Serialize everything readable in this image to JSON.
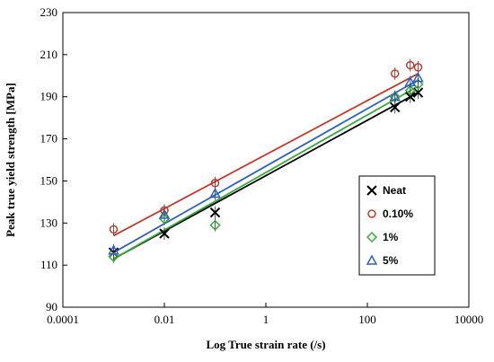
{
  "chart_data": {
    "type": "scatter",
    "xlabel": "Log True strain rate (/s)",
    "ylabel": "Peak true yield strength [MPa]",
    "x_scale": "log",
    "xlim": [
      0.0001,
      10000
    ],
    "ylim": [
      90,
      230
    ],
    "x_ticks": [
      "0.0001",
      "0.01",
      "1",
      "100",
      "10000"
    ],
    "y_ticks": [
      90,
      110,
      130,
      150,
      170,
      190,
      210,
      230
    ],
    "grid": false,
    "legend_position": "bottom-right",
    "series": [
      {
        "name": "Neat",
        "marker": "x",
        "color": "#000000",
        "x": [
          0.001,
          0.01,
          0.1,
          350,
          700,
          1000
        ],
        "y": [
          116,
          125,
          135,
          185,
          190,
          192
        ],
        "trend_y": [
          113,
          192
        ]
      },
      {
        "name": "0.10%",
        "marker": "circle",
        "color": "#c0392b",
        "x": [
          0.001,
          0.01,
          0.1,
          350,
          700,
          1000
        ],
        "y": [
          127,
          136,
          149,
          201,
          205,
          204
        ],
        "trend_y": [
          124,
          201
        ]
      },
      {
        "name": "1%",
        "marker": "diamond",
        "color": "#3aa83a",
        "x": [
          0.001,
          0.01,
          0.1,
          350,
          700,
          1000
        ],
        "y": [
          114,
          132,
          129,
          190,
          193,
          196
        ],
        "trend_y": [
          113,
          195
        ]
      },
      {
        "name": "5%",
        "marker": "triangle",
        "color": "#2f5fbf",
        "x": [
          0.001,
          0.01,
          0.1,
          350,
          700,
          1000
        ],
        "y": [
          117,
          134,
          144,
          190,
          197,
          199
        ],
        "trend_y": [
          116,
          198
        ]
      }
    ],
    "trend_x_range": [
      0.001,
      1000
    ]
  }
}
